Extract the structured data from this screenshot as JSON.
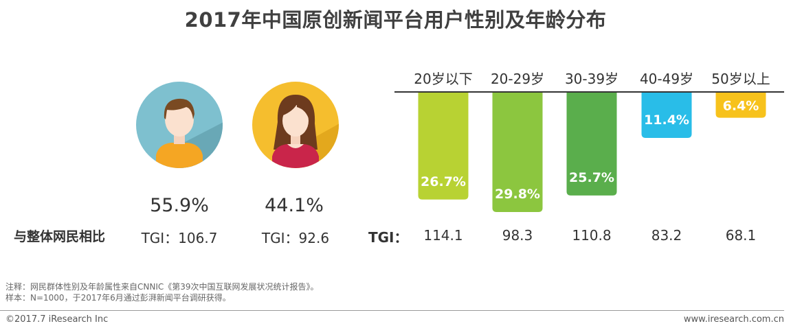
{
  "title": "2017年中国原创新闻平台用户性别及年龄分布",
  "gender": {
    "male": {
      "pct": "55.9%",
      "tgi": "TGI：106.7",
      "color": "#7ec0cf"
    },
    "female": {
      "pct": "44.1%",
      "tgi": "TGI：92.6",
      "color": "#f5be2e"
    }
  },
  "compare_label": "与整体网民相比",
  "tgi_label": "TGI：",
  "chart_data": {
    "type": "bar",
    "categories": [
      "20岁以下",
      "20-29岁",
      "30-39岁",
      "40-49岁",
      "50岁以上"
    ],
    "values": [
      26.7,
      29.8,
      25.7,
      11.4,
      6.4
    ],
    "value_labels": [
      "26.7%",
      "29.8%",
      "25.7%",
      "11.4%",
      "6.4%"
    ],
    "colors": [
      "#b8d233",
      "#8cc63f",
      "#5aae4c",
      "#29bde8",
      "#f7c21c"
    ],
    "tgi": [
      "114.1",
      "98.3",
      "110.8",
      "83.2",
      "68.1"
    ],
    "orientation": "downward",
    "ylim": [
      0,
      29.8
    ]
  },
  "notes": [
    "注释：网民群体性别及年龄属性来自CNNIC《第39次中国互联网发展状况统计报告》。",
    "样本：N=1000，于2017年6月通过彭湃新闻平台调研获得。"
  ],
  "footer": {
    "copyright": "©2017.7 iResearch Inc",
    "url": "www.iresearch.com.cn"
  }
}
